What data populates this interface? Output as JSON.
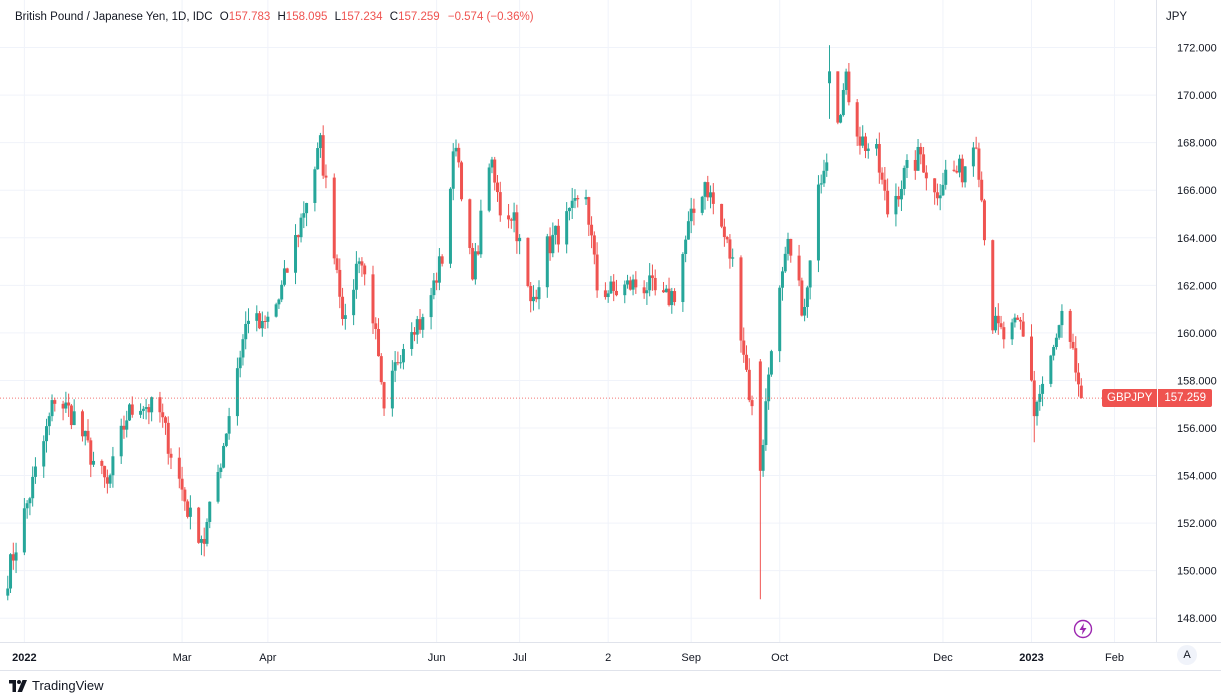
{
  "header": {
    "instrument": "British Pound / Japanese Yen, 1D, IDC",
    "open_label": "O",
    "open": "157.783",
    "high_label": "H",
    "high": "158.095",
    "low_label": "L",
    "low": "157.234",
    "close_label": "C",
    "close": "157.259",
    "change": "−0.574 (−0.36%)"
  },
  "currency": "JPY",
  "price_badge": {
    "symbol": "GBPJPY",
    "price": "157.259"
  },
  "auto_scale_label": "A",
  "brand": "TradingView",
  "colors": {
    "up": "#26a69a",
    "down": "#ef5350",
    "grid": "#f0f3fa",
    "text": "#131722"
  },
  "icons": [
    "lightning-icon",
    "tradingview-logo-icon"
  ],
  "chart_data": {
    "type": "candlestick",
    "title": "",
    "xlabel": "",
    "ylabel": "",
    "ylim": [
      147,
      174
    ],
    "grid": true,
    "y_ticks": [
      "148.000",
      "150.000",
      "152.000",
      "154.000",
      "156.000",
      "158.000",
      "160.000",
      "162.000",
      "164.000",
      "166.000",
      "168.000",
      "170.000",
      "172.000"
    ],
    "x_ticks": [
      {
        "label": "2022",
        "bold": true,
        "date": "2022-01-03"
      },
      {
        "label": "Mar",
        "bold": false,
        "date": "2022-03-01"
      },
      {
        "label": "Apr",
        "bold": false,
        "date": "2022-04-01"
      },
      {
        "label": "Jun",
        "bold": false,
        "date": "2022-06-01"
      },
      {
        "label": "Jul",
        "bold": false,
        "date": "2022-07-01"
      },
      {
        "label": "2",
        "bold": false,
        "date": "2022-08-02"
      },
      {
        "label": "Sep",
        "bold": false,
        "date": "2022-09-01"
      },
      {
        "label": "Oct",
        "bold": false,
        "date": "2022-10-03"
      },
      {
        "label": "Dec",
        "bold": false,
        "date": "2022-12-01"
      },
      {
        "label": "2023",
        "bold": true,
        "date": "2023-01-02"
      },
      {
        "label": "Feb",
        "bold": false,
        "date": "2023-02-01"
      }
    ],
    "candle_width": 3,
    "series_points": [
      [
        "2021-12-28",
        149.8
      ],
      [
        "2022-01-04",
        152.8
      ],
      [
        "2022-01-10",
        155.4
      ],
      [
        "2022-01-14",
        157.3
      ],
      [
        "2022-01-21",
        156.5
      ],
      [
        "2022-01-28",
        154.6
      ],
      [
        "2022-02-02",
        153.5
      ],
      [
        "2022-02-09",
        156.5
      ],
      [
        "2022-02-14",
        157.1
      ],
      [
        "2022-02-21",
        156.6
      ],
      [
        "2022-02-28",
        153.8
      ],
      [
        "2022-03-04",
        152.2
      ],
      [
        "2022-03-09",
        151.3
      ],
      [
        "2022-03-15",
        154.7
      ],
      [
        "2022-03-21",
        158.6
      ],
      [
        "2022-03-25",
        160.8
      ],
      [
        "2022-03-30",
        160.1
      ],
      [
        "2022-04-05",
        161.4
      ],
      [
        "2022-04-12",
        164.3
      ],
      [
        "2022-04-20",
        167.9
      ],
      [
        "2022-04-25",
        163.6
      ],
      [
        "2022-04-29",
        160.2
      ],
      [
        "2022-05-04",
        163.4
      ],
      [
        "2022-05-09",
        160.8
      ],
      [
        "2022-05-13",
        156.4
      ],
      [
        "2022-05-18",
        159.0
      ],
      [
        "2022-05-23",
        160.5
      ],
      [
        "2022-05-27",
        160.4
      ],
      [
        "2022-06-03",
        163.2
      ],
      [
        "2022-06-08",
        168.2
      ],
      [
        "2022-06-14",
        162.1
      ],
      [
        "2022-06-20",
        167.3
      ],
      [
        "2022-06-24",
        165.2
      ],
      [
        "2022-06-29",
        165.0
      ],
      [
        "2022-07-05",
        161.1
      ],
      [
        "2022-07-11",
        163.6
      ],
      [
        "2022-07-18",
        164.7
      ],
      [
        "2022-07-25",
        165.8
      ],
      [
        "2022-07-29",
        161.9
      ],
      [
        "2022-08-04",
        161.7
      ],
      [
        "2022-08-10",
        162.0
      ],
      [
        "2022-08-16",
        162.0
      ],
      [
        "2022-08-22",
        161.3
      ],
      [
        "2022-08-26",
        161.7
      ],
      [
        "2022-08-31",
        164.4
      ],
      [
        "2022-09-06",
        166.4
      ],
      [
        "2022-09-12",
        164.4
      ],
      [
        "2022-09-16",
        162.9
      ],
      [
        "2022-09-22",
        157.5
      ],
      [
        "2022-09-26",
        154.2
      ],
      [
        "2022-09-30",
        159.7
      ],
      [
        "2022-10-06",
        163.5
      ],
      [
        "2022-10-12",
        160.8
      ],
      [
        "2022-10-18",
        166.8
      ],
      [
        "2022-10-24",
        169.3
      ],
      [
        "2022-10-27",
        170.5
      ],
      [
        "2022-11-01",
        168.2
      ],
      [
        "2022-11-07",
        167.4
      ],
      [
        "2022-11-11",
        165.1
      ],
      [
        "2022-11-17",
        166.6
      ],
      [
        "2022-11-23",
        167.5
      ],
      [
        "2022-11-28",
        165.8
      ],
      [
        "2022-12-02",
        166.7
      ],
      [
        "2022-12-08",
        166.8
      ],
      [
        "2022-12-13",
        168.3
      ],
      [
        "2022-12-19",
        160.4
      ],
      [
        "2022-12-23",
        159.8
      ],
      [
        "2022-12-29",
        160.3
      ],
      [
        "2023-01-04",
        157.1
      ],
      [
        "2023-01-09",
        158.8
      ],
      [
        "2023-01-13",
        160.5
      ],
      [
        "2023-01-18",
        158.4
      ],
      [
        "2023-01-20",
        157.3
      ]
    ],
    "notable_candles": [
      {
        "date": "2022-09-26",
        "open": 158.8,
        "high": 158.9,
        "low": 148.8,
        "close": 154.2
      },
      {
        "date": "2022-10-21",
        "open": 170.5,
        "high": 172.1,
        "low": 169.0,
        "close": 171.0
      },
      {
        "date": "2023-01-03",
        "open": 158.0,
        "high": 158.4,
        "low": 155.4,
        "close": 156.5
      }
    ],
    "last": {
      "open": 157.783,
      "high": 158.095,
      "low": 157.234,
      "close": 157.259
    }
  }
}
